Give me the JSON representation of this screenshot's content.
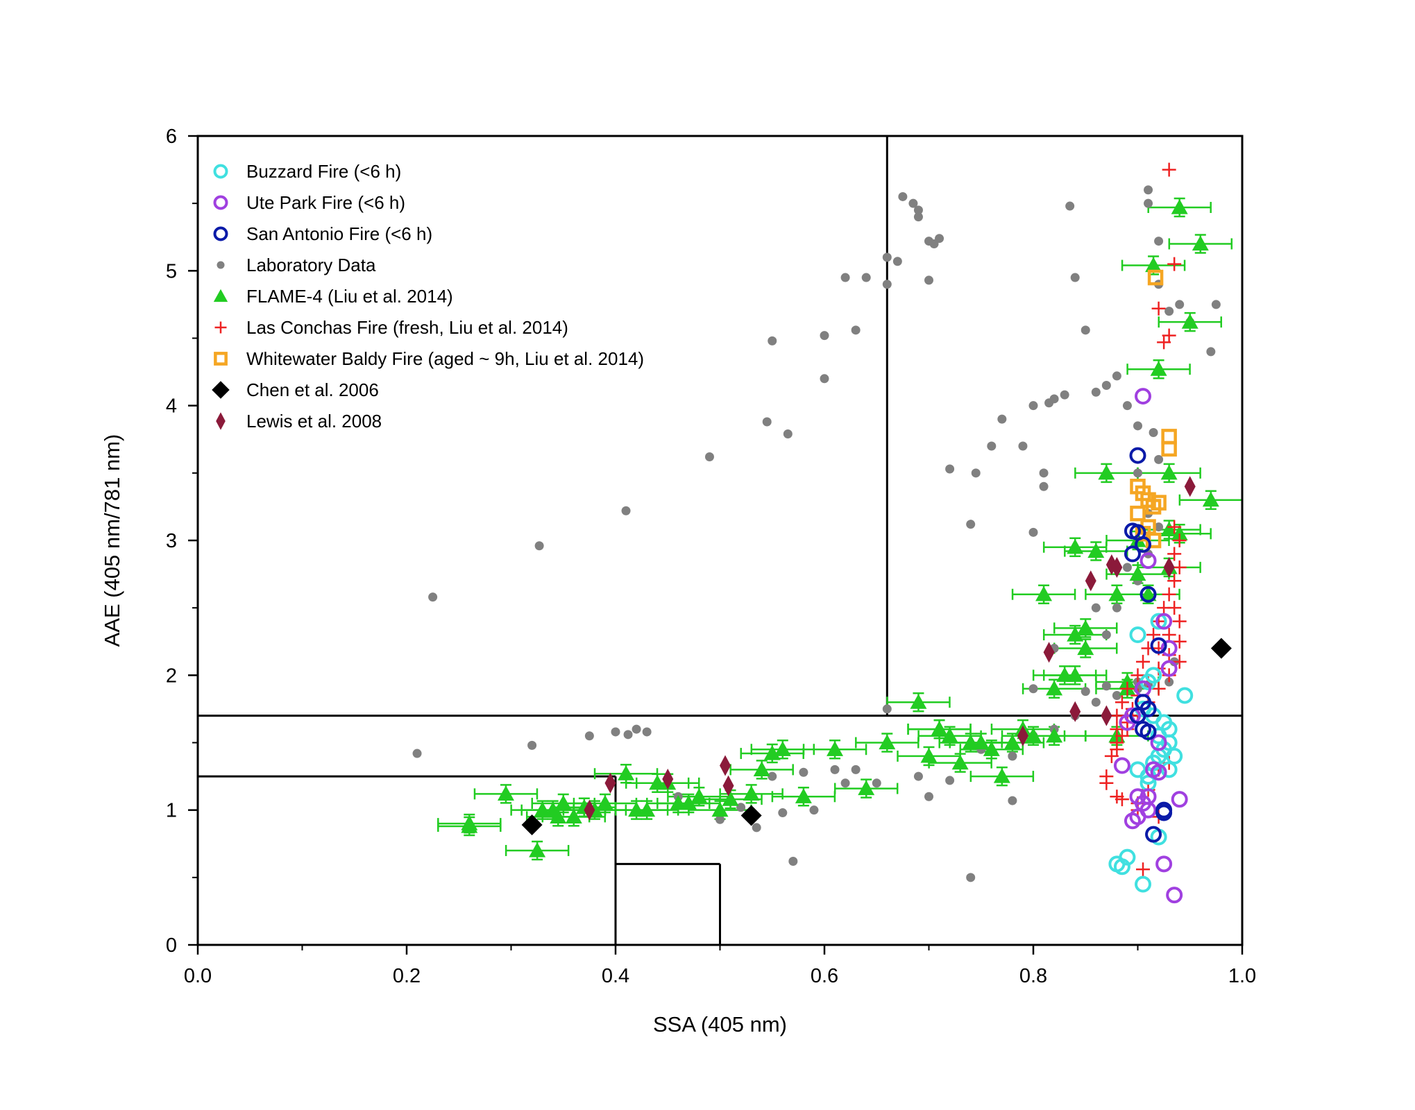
{
  "chart_data": {
    "type": "scatter",
    "xlabel": "SSA (405 nm)",
    "ylabel": "AAE (405 nm/781 nm)",
    "xlim": [
      0.0,
      1.0
    ],
    "ylim": [
      0,
      6
    ],
    "x_ticks": [
      "0.0",
      "0.2",
      "0.4",
      "0.6",
      "0.8",
      "1.0"
    ],
    "y_ticks": [
      "0",
      "1",
      "2",
      "3",
      "4",
      "5",
      "6"
    ],
    "grid": false,
    "legend_position": "top-left",
    "region_lines": [
      {
        "x": [
          0.66,
          0.66
        ],
        "y": [
          1.7,
          6
        ]
      },
      {
        "x": [
          0.0,
          1.0
        ],
        "y": [
          1.7,
          1.7
        ]
      },
      {
        "x": [
          0.0,
          0.4
        ],
        "y": [
          1.25,
          1.25
        ]
      },
      {
        "x": [
          0.4,
          0.4
        ],
        "y": [
          0,
          1.25
        ]
      },
      {
        "x": [
          0.4,
          0.5
        ],
        "y": [
          0.6,
          0.6
        ]
      },
      {
        "x": [
          0.5,
          0.5
        ],
        "y": [
          0,
          0.6
        ]
      }
    ],
    "series": [
      {
        "name": "Laboratory Data",
        "marker": "filled-circle",
        "color": "#808080",
        "x": [
          0.21,
          0.225,
          0.32,
          0.327,
          0.375,
          0.4,
          0.41,
          0.412,
          0.42,
          0.43,
          0.46,
          0.49,
          0.5,
          0.535,
          0.545,
          0.55,
          0.565,
          0.57,
          0.6,
          0.6,
          0.62,
          0.63,
          0.64,
          0.66,
          0.66,
          0.66,
          0.67,
          0.675,
          0.685,
          0.69,
          0.69,
          0.7,
          0.7,
          0.705,
          0.71,
          0.72,
          0.74,
          0.745,
          0.76,
          0.77,
          0.78,
          0.79,
          0.8,
          0.8,
          0.81,
          0.81,
          0.815,
          0.82,
          0.83,
          0.835,
          0.84,
          0.85,
          0.86,
          0.87,
          0.88,
          0.89,
          0.9,
          0.9,
          0.91,
          0.91,
          0.915,
          0.92,
          0.92,
          0.93,
          0.94,
          0.95,
          0.97,
          0.975,
          0.63,
          0.69,
          0.72,
          0.75,
          0.78,
          0.8,
          0.82,
          0.84,
          0.86,
          0.88,
          0.9,
          0.93,
          0.55,
          0.58,
          0.61,
          0.65,
          0.7,
          0.74,
          0.78,
          0.82,
          0.86,
          0.89,
          0.91,
          0.92,
          0.935,
          0.87,
          0.88,
          0.9,
          0.91,
          0.92,
          0.62,
          0.59,
          0.56,
          0.52,
          0.8,
          0.85,
          0.87,
          0.9,
          0.91
        ],
        "y": [
          1.42,
          2.58,
          1.48,
          2.96,
          1.55,
          1.58,
          3.22,
          1.56,
          1.6,
          1.58,
          1.1,
          3.62,
          0.93,
          0.87,
          3.88,
          4.48,
          3.79,
          0.62,
          4.52,
          4.2,
          4.95,
          4.56,
          4.95,
          4.9,
          5.1,
          1.75,
          5.07,
          5.55,
          5.5,
          5.45,
          5.4,
          5.22,
          4.93,
          5.2,
          5.24,
          3.53,
          3.12,
          3.5,
          3.7,
          3.9,
          1.07,
          3.7,
          4.0,
          3.06,
          3.5,
          3.4,
          4.02,
          4.05,
          4.08,
          5.48,
          4.95,
          4.56,
          4.1,
          4.15,
          4.22,
          4.0,
          3.85,
          3.5,
          5.6,
          5.5,
          3.8,
          4.9,
          5.22,
          4.7,
          4.75,
          4.62,
          4.4,
          4.75,
          1.3,
          1.25,
          1.22,
          1.45,
          1.4,
          1.55,
          1.6,
          1.7,
          1.8,
          1.85,
          1.9,
          1.95,
          1.25,
          1.28,
          1.3,
          1.2,
          1.1,
          0.5,
          1.4,
          2.2,
          2.5,
          2.8,
          3.2,
          3.6,
          2.1,
          2.3,
          2.5,
          2.7,
          2.9,
          3.1,
          1.2,
          1.0,
          0.98,
          1.02,
          1.9,
          1.88,
          1.92,
          1.95,
          1.93
        ]
      },
      {
        "name": "FLAME-4 (Liu et al. 2014)",
        "marker": "filled-triangle",
        "color": "#22cc22",
        "x": [
          0.26,
          0.26,
          0.295,
          0.33,
          0.34,
          0.35,
          0.36,
          0.38,
          0.39,
          0.41,
          0.42,
          0.44,
          0.46,
          0.48,
          0.5,
          0.53,
          0.55,
          0.56,
          0.58,
          0.61,
          0.64,
          0.69,
          0.71,
          0.72,
          0.74,
          0.77,
          0.79,
          0.8,
          0.82,
          0.84,
          0.85,
          0.86,
          0.87,
          0.88,
          0.89,
          0.9,
          0.91,
          0.92,
          0.93,
          0.94,
          0.95,
          0.96,
          0.97,
          0.84,
          0.84,
          0.85,
          0.89,
          0.915,
          0.93,
          0.94,
          0.93,
          0.9,
          0.88,
          0.83,
          0.81,
          0.82,
          0.325,
          0.345,
          0.37,
          0.43,
          0.45,
          0.47,
          0.51,
          0.54,
          0.66,
          0.7,
          0.71,
          0.73,
          0.75,
          0.76,
          0.78
        ],
        "y": [
          0.9,
          0.88,
          1.12,
          1.0,
          1.0,
          1.05,
          0.95,
          1.0,
          1.05,
          1.27,
          1.0,
          1.2,
          1.05,
          1.1,
          1.0,
          1.12,
          1.42,
          1.45,
          1.1,
          1.45,
          1.16,
          1.8,
          1.6,
          1.55,
          1.5,
          1.25,
          1.6,
          1.55,
          1.55,
          2.3,
          2.35,
          2.92,
          3.5,
          1.55,
          1.95,
          3.0,
          2.6,
          4.27,
          3.5,
          5.47,
          4.62,
          5.2,
          3.3,
          2.95,
          2.0,
          2.2,
          1.9,
          5.04,
          3.08,
          3.05,
          2.8,
          2.75,
          2.6,
          2.0,
          2.6,
          1.9,
          0.7,
          0.95,
          1.02,
          1.0,
          1.2,
          1.05,
          1.08,
          1.3,
          1.5,
          1.4,
          1.6,
          1.35,
          1.5,
          1.45,
          1.5
        ]
      },
      {
        "name": "Las Conchas Fire (fresh, Liu et al. 2014)",
        "marker": "plus",
        "color": "#ee2222",
        "x": [
          0.93,
          0.935,
          0.92,
          0.925,
          0.93,
          0.88,
          0.885,
          0.89,
          0.9,
          0.905,
          0.91,
          0.915,
          0.92,
          0.925,
          0.93,
          0.935,
          0.94,
          0.88,
          0.89,
          0.9,
          0.91,
          0.92,
          0.93,
          0.94,
          0.875,
          0.88,
          0.885,
          0.89,
          0.895,
          0.9,
          0.91,
          0.92,
          0.93,
          0.94,
          0.87,
          0.88,
          0.9,
          0.91,
          0.92,
          0.93,
          0.935,
          0.94,
          0.87,
          0.885,
          0.9,
          0.92,
          0.935,
          0.905,
          0.93,
          0.94,
          0.935,
          0.92,
          0.88,
          0.89
        ],
        "y": [
          5.75,
          5.05,
          4.72,
          4.47,
          4.52,
          1.7,
          1.8,
          1.9,
          2.0,
          2.1,
          2.2,
          2.3,
          2.4,
          2.5,
          2.6,
          2.7,
          2.8,
          1.5,
          1.6,
          1.7,
          1.8,
          1.9,
          2.0,
          2.1,
          1.4,
          1.45,
          1.55,
          1.65,
          1.75,
          1.85,
          1.95,
          2.05,
          2.15,
          2.25,
          1.25,
          1.1,
          1.05,
          1.15,
          1.3,
          1.35,
          2.9,
          3.0,
          1.2,
          1.08,
          1.0,
          0.95,
          3.1,
          0.56,
          2.3,
          2.4,
          2.5,
          2.2,
          1.6,
          1.7
        ]
      },
      {
        "name": "Whitewater Baldy Fire (aged ~ 9h, Liu et al. 2014)",
        "marker": "open-square",
        "color": "#f5a623",
        "x": [
          0.917,
          0.93,
          0.93,
          0.9,
          0.905,
          0.91,
          0.915,
          0.92,
          0.9,
          0.91,
          0.905,
          0.915
        ],
        "y": [
          4.95,
          3.77,
          3.68,
          3.4,
          3.35,
          3.3,
          3.25,
          3.28,
          3.2,
          3.1,
          3.05,
          3.0
        ]
      },
      {
        "name": "Buzzard Fire (<6 h)",
        "marker": "open-circle",
        "color": "#40e0e0",
        "x": [
          0.945,
          0.89,
          0.885,
          0.88,
          0.905,
          0.91,
          0.915,
          0.92,
          0.925,
          0.93,
          0.935,
          0.9,
          0.91,
          0.92,
          0.93,
          0.915,
          0.905,
          0.92,
          0.925,
          0.91,
          0.9,
          0.915,
          0.92,
          0.93
        ],
        "y": [
          1.85,
          0.65,
          0.58,
          0.6,
          0.45,
          1.25,
          1.35,
          1.4,
          1.45,
          1.5,
          1.4,
          1.3,
          1.2,
          1.55,
          1.6,
          1.7,
          1.75,
          0.8,
          1.65,
          1.95,
          2.3,
          2.0,
          2.4,
          1.3
        ]
      },
      {
        "name": "Ute Park Fire (<6 h)",
        "marker": "open-circle",
        "color": "#a040e0",
        "x": [
          0.905,
          0.91,
          0.925,
          0.93,
          0.935,
          0.9,
          0.905,
          0.91,
          0.915,
          0.92,
          0.89,
          0.895,
          0.9,
          0.91,
          0.925,
          0.94,
          0.885,
          0.895,
          0.905,
          0.92,
          0.93
        ],
        "y": [
          4.07,
          2.85,
          2.4,
          2.05,
          0.37,
          1.1,
          1.05,
          1.0,
          1.3,
          1.5,
          1.65,
          0.92,
          0.95,
          1.1,
          0.6,
          1.08,
          1.33,
          1.7,
          1.9,
          1.28,
          2.2
        ]
      },
      {
        "name": "San Antonio Fire (<6 h)",
        "marker": "open-circle",
        "color": "#0a1aa8",
        "x": [
          0.9,
          0.895,
          0.9,
          0.895,
          0.905,
          0.91,
          0.905,
          0.91,
          0.9,
          0.905,
          0.91,
          0.92,
          0.925,
          0.915,
          0.925
        ],
        "y": [
          3.63,
          3.07,
          3.06,
          2.9,
          2.97,
          2.6,
          1.8,
          1.75,
          1.7,
          1.6,
          1.58,
          2.22,
          1.0,
          0.82,
          0.98
        ]
      },
      {
        "name": "Chen et al. 2006",
        "marker": "filled-diamond",
        "color": "#000000",
        "x": [
          0.32,
          0.53,
          0.98
        ],
        "y": [
          0.89,
          0.96,
          2.2
        ]
      },
      {
        "name": "Lewis et al. 2008",
        "marker": "filled-thin-diamond",
        "color": "#8b1a3a",
        "x": [
          0.375,
          0.395,
          0.45,
          0.505,
          0.508,
          0.79,
          0.815,
          0.84,
          0.855,
          0.87,
          0.875,
          0.88,
          0.93,
          0.95
        ],
        "y": [
          1.0,
          1.2,
          1.23,
          1.33,
          1.18,
          1.55,
          2.17,
          1.73,
          2.7,
          1.7,
          2.82,
          2.8,
          2.8,
          3.4
        ]
      }
    ]
  }
}
